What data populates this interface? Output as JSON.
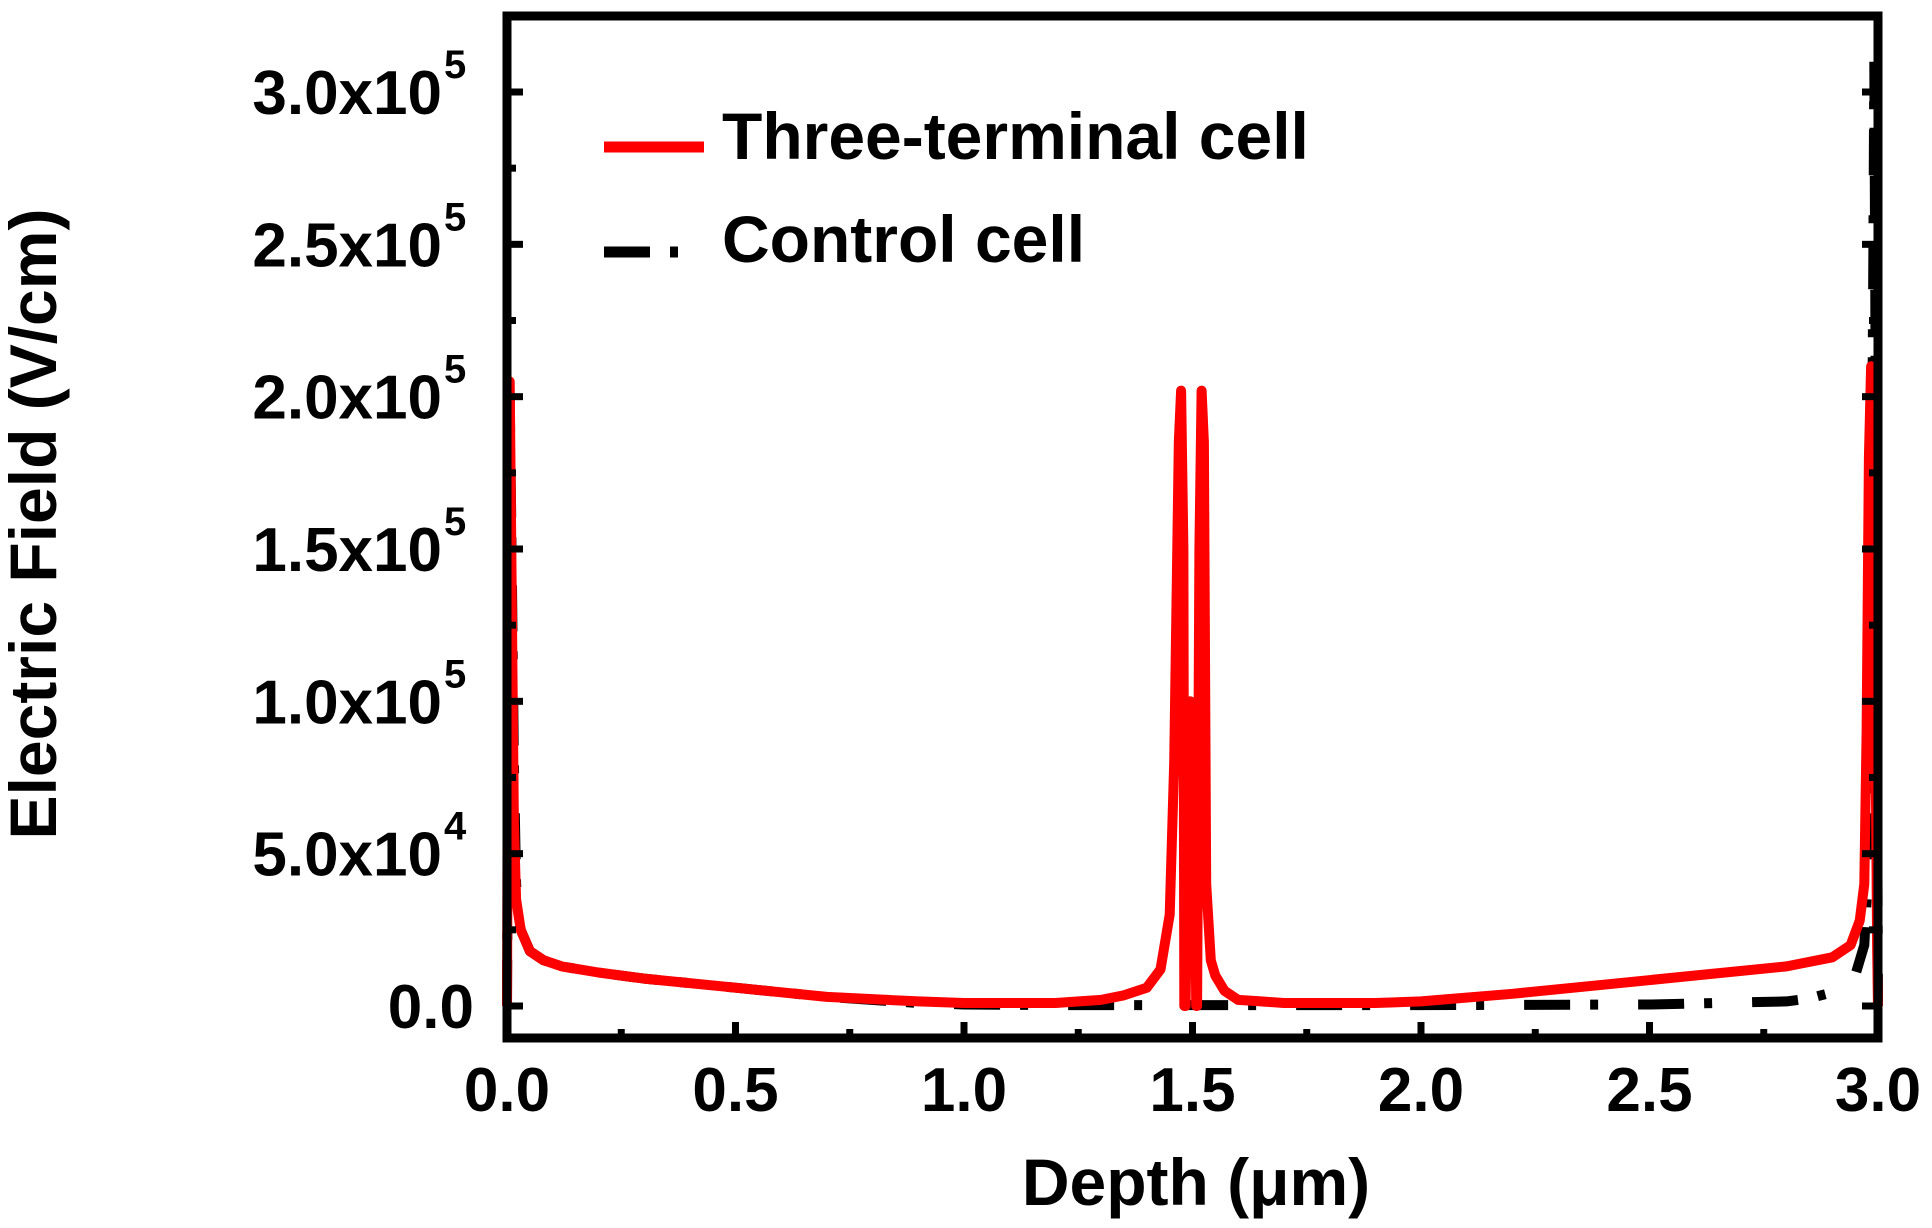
{
  "chart_data": {
    "type": "line",
    "title": "",
    "xlabel": "Depth (μm)",
    "ylabel": "Electric Field (V/cm)",
    "xlim": [
      0.0,
      3.0
    ],
    "ylim": [
      -10000,
      320000
    ],
    "x_ticks": [
      {
        "value": 0.0,
        "label": "0.0"
      },
      {
        "value": 0.5,
        "label": "0.5"
      },
      {
        "value": 1.0,
        "label": "1.0"
      },
      {
        "value": 1.5,
        "label": "1.5"
      },
      {
        "value": 2.0,
        "label": "2.0"
      },
      {
        "value": 2.5,
        "label": "2.5"
      },
      {
        "value": 3.0,
        "label": "3.0"
      }
    ],
    "y_ticks": [
      {
        "value": 0,
        "mantissa": "0.0",
        "exponent": ""
      },
      {
        "value": 50000,
        "mantissa": "5.0x10",
        "exponent": "4"
      },
      {
        "value": 100000,
        "mantissa": "1.0x10",
        "exponent": "5"
      },
      {
        "value": 150000,
        "mantissa": "1.5x10",
        "exponent": "5"
      },
      {
        "value": 200000,
        "mantissa": "2.0x10",
        "exponent": "5"
      },
      {
        "value": 250000,
        "mantissa": "2.5x10",
        "exponent": "5"
      },
      {
        "value": 300000,
        "mantissa": "3.0x10",
        "exponent": "5"
      }
    ],
    "legend_position": "top-left",
    "series": [
      {
        "name": "Three-terminal cell",
        "color": "#ff0000",
        "style": "solid",
        "x": [
          0.0,
          0.003,
          0.006,
          0.01,
          0.015,
          0.02,
          0.03,
          0.05,
          0.08,
          0.12,
          0.2,
          0.3,
          0.5,
          0.7,
          0.9,
          1.0,
          1.1,
          1.2,
          1.3,
          1.35,
          1.4,
          1.43,
          1.45,
          1.46,
          1.47,
          1.475,
          1.48,
          1.482,
          1.485,
          1.49,
          1.495,
          1.5,
          1.505,
          1.508,
          1.51,
          1.515,
          1.52,
          1.525,
          1.53,
          1.54,
          1.55,
          1.57,
          1.6,
          1.65,
          1.7,
          1.8,
          1.9,
          2.0,
          2.2,
          2.4,
          2.6,
          2.8,
          2.9,
          2.94,
          2.96,
          2.97,
          2.975,
          2.98,
          2.985,
          2.988,
          2.99,
          2.993,
          2.996,
          2.998,
          3.0
        ],
        "values": [
          0,
          150000,
          205000,
          140000,
          60000,
          35000,
          25000,
          18000,
          15000,
          13000,
          11000,
          9000,
          6000,
          3000,
          1500,
          1000,
          1000,
          1000,
          2000,
          3500,
          6000,
          12000,
          30000,
          80000,
          185000,
          202000,
          150000,
          0,
          0,
          60000,
          100000,
          80000,
          60000,
          0,
          0,
          150000,
          202000,
          185000,
          40000,
          15000,
          10000,
          5000,
          2000,
          1500,
          1000,
          1000,
          1000,
          1500,
          4000,
          7000,
          10000,
          13000,
          16000,
          20000,
          28000,
          40000,
          90000,
          180000,
          210000,
          190000,
          150000,
          110000,
          60000,
          20000,
          0
        ]
      },
      {
        "name": "Control cell",
        "color": "#000000",
        "style": "dash-dot",
        "x": [
          0.0,
          0.003,
          0.006,
          0.01,
          0.015,
          0.02,
          0.03,
          0.05,
          0.08,
          0.12,
          0.2,
          0.3,
          0.5,
          0.7,
          0.9,
          1.0,
          1.2,
          1.5,
          2.0,
          2.5,
          2.8,
          2.85,
          2.9,
          2.93,
          2.95,
          2.97,
          2.98,
          2.985,
          2.988,
          2.99,
          2.992,
          2.995,
          3.0
        ],
        "values": [
          0,
          100000,
          200000,
          150000,
          80000,
          40000,
          25000,
          18000,
          15000,
          13000,
          11000,
          9000,
          6000,
          3000,
          1000,
          500,
          300,
          300,
          300,
          500,
          1500,
          2500,
          4500,
          6500,
          10000,
          20000,
          50000,
          120000,
          200000,
          250000,
          310000,
          200000,
          0
        ]
      }
    ]
  }
}
